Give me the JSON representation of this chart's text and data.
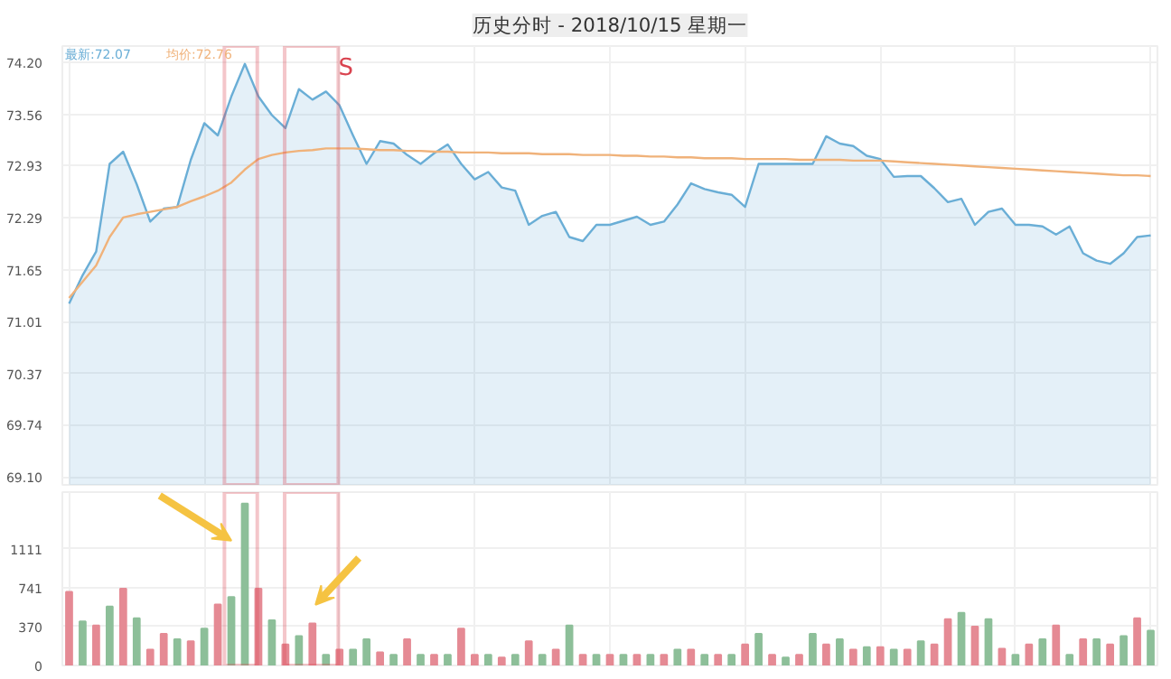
{
  "chart_data": [
    {
      "type": "area",
      "title": "历史分时 - 2018/10/15 星期一",
      "categories": [
        null,
        null,
        null,
        null,
        null,
        null,
        null,
        null,
        null,
        null,
        null,
        null,
        null,
        null,
        null,
        null,
        null,
        null,
        null,
        null,
        null,
        null,
        null,
        null,
        null,
        null,
        null,
        null,
        null,
        null,
        null,
        null,
        null,
        null,
        null,
        null,
        null,
        null,
        null,
        null,
        null,
        null,
        null,
        null,
        null,
        null,
        null,
        null,
        null,
        null,
        null,
        null,
        null,
        null,
        null,
        null,
        null,
        null,
        null,
        null,
        null,
        null,
        null,
        null,
        null,
        null,
        null,
        null,
        null,
        null,
        null,
        null,
        null,
        null,
        null,
        null,
        null,
        null,
        null,
        null,
        null
      ],
      "ylim": [
        69.0,
        74.4
      ],
      "yticks": [
        {
          "value": 69.1,
          "label": "69.10"
        },
        69.74,
        70.37,
        71.01,
        71.65,
        72.29,
        72.93,
        73.56,
        {
          "value": 74.2,
          "label": "74.20"
        }
      ],
      "grid": true,
      "tick_labels": "y",
      "annotations": [
        "S"
      ],
      "series": [
        {
          "name": "最新:72.07",
          "type": "area",
          "color": "#6aaed6",
          "values": [
            71.23,
            71.58,
            71.87,
            72.95,
            73.1,
            72.7,
            72.24,
            72.4,
            72.42,
            73.0,
            73.45,
            73.3,
            73.78,
            74.18,
            73.78,
            73.55,
            73.39,
            73.87,
            73.74,
            73.84,
            73.67,
            73.3,
            72.95,
            73.23,
            73.2,
            73.06,
            72.95,
            73.08,
            73.19,
            72.95,
            72.76,
            72.85,
            72.66,
            72.62,
            72.2,
            72.31,
            72.36,
            72.05,
            72.0,
            72.2,
            72.2,
            72.25,
            72.3,
            72.2,
            72.24,
            72.45,
            72.71,
            72.64,
            72.6,
            72.57,
            72.42,
            72.95,
            72.95,
            72.95,
            72.95,
            72.95,
            73.29,
            73.2,
            73.17,
            73.05,
            73.01,
            72.79,
            72.8,
            72.8,
            72.65,
            72.48,
            72.52,
            72.2,
            72.36,
            72.4,
            72.2,
            72.2,
            72.18,
            72.08,
            72.18,
            71.85,
            71.76,
            71.72,
            71.85,
            72.05,
            72.07
          ]
        },
        {
          "name": "均价:72.76",
          "type": "line",
          "color": "#f0b27a",
          "values": [
            71.3,
            71.5,
            71.7,
            72.05,
            72.29,
            72.33,
            72.36,
            72.39,
            72.42,
            72.49,
            72.55,
            72.62,
            72.72,
            72.88,
            73.01,
            73.06,
            73.09,
            73.11,
            73.12,
            73.14,
            73.14,
            73.14,
            73.13,
            73.12,
            73.12,
            73.11,
            73.11,
            73.1,
            73.1,
            73.09,
            73.09,
            73.09,
            73.08,
            73.08,
            73.08,
            73.07,
            73.07,
            73.07,
            73.06,
            73.06,
            73.06,
            73.05,
            73.05,
            73.04,
            73.04,
            73.03,
            73.03,
            73.02,
            73.02,
            73.02,
            73.01,
            73.01,
            73.01,
            73.01,
            73.0,
            73.0,
            73.0,
            73.0,
            72.99,
            72.99,
            72.99,
            72.98,
            72.97,
            72.96,
            72.95,
            72.94,
            72.93,
            72.92,
            72.91,
            72.9,
            72.89,
            72.88,
            72.87,
            72.86,
            72.85,
            72.84,
            72.83,
            72.82,
            72.81,
            72.81,
            72.8
          ]
        }
      ]
    },
    {
      "type": "bar",
      "categories": [
        null,
        null,
        null,
        null,
        null,
        null,
        null,
        null,
        null,
        null,
        null,
        null,
        null,
        null,
        null,
        null,
        null,
        null,
        null,
        null,
        null,
        null,
        null,
        null,
        null,
        null,
        null,
        null,
        null,
        null,
        null,
        null,
        null,
        null,
        null,
        null,
        null,
        null,
        null,
        null,
        null,
        null,
        null,
        null,
        null,
        null,
        null,
        null,
        null,
        null,
        null,
        null,
        null,
        null,
        null,
        null,
        null,
        null,
        null,
        null,
        null,
        null,
        null,
        null,
        null,
        null,
        null,
        null,
        null,
        null,
        null,
        null,
        null,
        null,
        null,
        null,
        null,
        null,
        null,
        null,
        null
      ],
      "ylim": [
        0,
        1650
      ],
      "yticks": [
        0,
        370,
        741,
        1111
      ],
      "grid": true,
      "tick_labels": "y",
      "values": [
        700,
        420,
        380,
        560,
        730,
        450,
        150,
        300,
        250,
        230,
        350,
        580,
        650,
        1540,
        730,
        430,
        200,
        280,
        400,
        100,
        150,
        150,
        250,
        125,
        100,
        250,
        100,
        100,
        100,
        350,
        100,
        100,
        75,
        100,
        230,
        100,
        150,
        380,
        100,
        100,
        100,
        100,
        100,
        100,
        100,
        150,
        150,
        100,
        100,
        100,
        200,
        300,
        100,
        75,
        100,
        300,
        200,
        250,
        150,
        175,
        175,
        150,
        150,
        230,
        200,
        440,
        500,
        370,
        440,
        160,
        100,
        200,
        250,
        380,
        100,
        250,
        250,
        200,
        280,
        450,
        330
      ],
      "colors": [
        "#e58a94",
        "#8dbf99",
        "#e58a94",
        "#8dbf99",
        "#e58a94",
        "#8dbf99",
        "#e58a94",
        "#e58a94",
        "#8dbf99",
        "#e58a94",
        "#8dbf99",
        "#e58a94",
        "#8dbf99",
        "#8dbf99",
        "#e58a94",
        "#8dbf99",
        "#e58a94",
        "#8dbf99",
        "#e58a94",
        "#8dbf99",
        "#e58a94",
        "#8dbf99",
        "#8dbf99",
        "#e58a94",
        "#8dbf99",
        "#e58a94",
        "#8dbf99",
        "#e58a94",
        "#8dbf99",
        "#e58a94",
        "#e58a94",
        "#8dbf99",
        "#e58a94",
        "#8dbf99",
        "#e58a94",
        "#8dbf99",
        "#e58a94",
        "#8dbf99",
        "#e58a94",
        "#8dbf99",
        "#e58a94",
        "#8dbf99",
        "#e58a94",
        "#8dbf99",
        "#e58a94",
        "#8dbf99",
        "#e58a94",
        "#8dbf99",
        "#e58a94",
        "#8dbf99",
        "#e58a94",
        "#8dbf99",
        "#e58a94",
        "#8dbf99",
        "#e58a94",
        "#8dbf99",
        "#e58a94",
        "#8dbf99",
        "#e58a94",
        "#8dbf99",
        "#e58a94",
        "#8dbf99",
        "#e58a94",
        "#8dbf99",
        "#e58a94",
        "#e58a94",
        "#8dbf99",
        "#e58a94",
        "#8dbf99",
        "#e58a94",
        "#8dbf99",
        "#e58a94",
        "#8dbf99",
        "#e58a94",
        "#8dbf99",
        "#e58a94",
        "#8dbf99",
        "#e58a94",
        "#8dbf99",
        "#e58a94",
        "#8dbf99"
      ]
    }
  ]
}
